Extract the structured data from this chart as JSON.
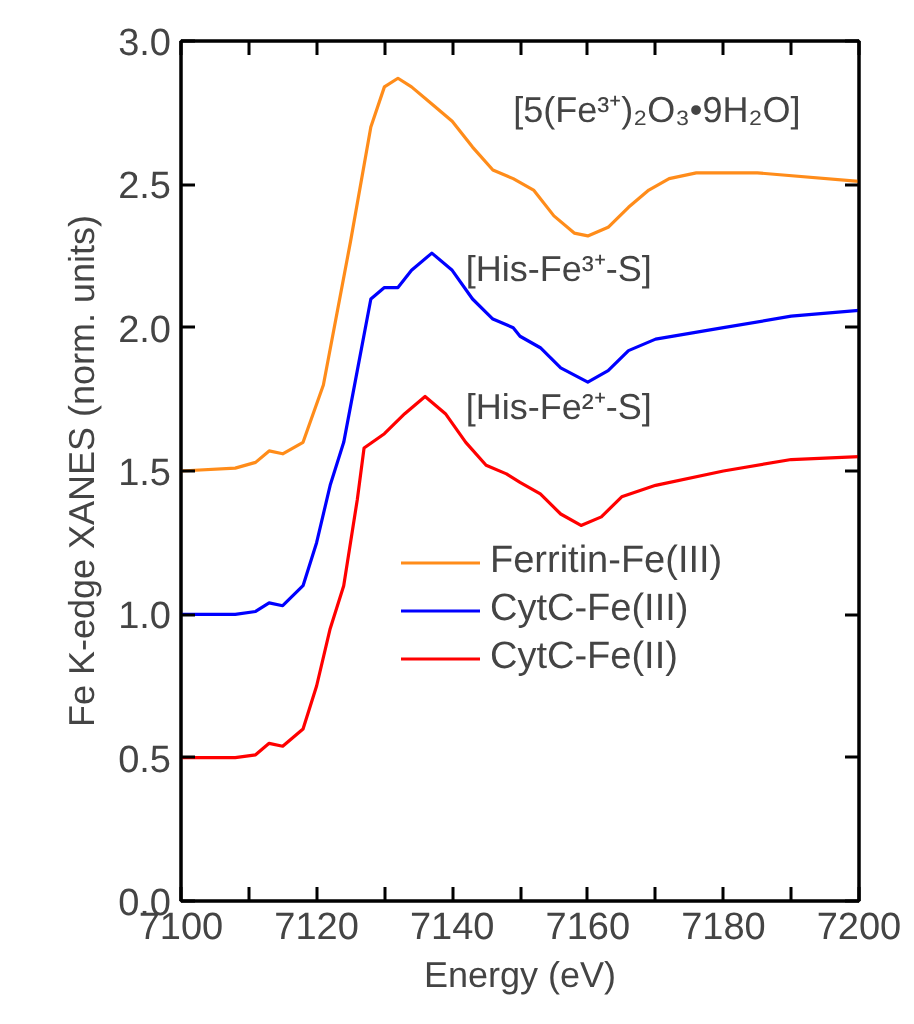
{
  "chart_data": {
    "type": "line",
    "xlabel": "Energy (eV)",
    "ylabel": "Fe K-edge XANES (norm. units)",
    "xlim": [
      7100,
      7200
    ],
    "ylim": [
      0,
      3
    ],
    "xticks": [
      7100,
      {
        "value": 7110,
        "label": null
      },
      7120,
      {
        "value": 7130,
        "label": null
      },
      7140,
      {
        "value": 7150,
        "label": null
      },
      7160,
      {
        "value": 7170,
        "label": null
      },
      7180,
      {
        "value": 7190,
        "label": null
      },
      7200
    ],
    "yticks": [
      {
        "value": 0,
        "label": "0.0"
      },
      {
        "value": 0.5,
        "label": "0.5"
      },
      {
        "value": 1,
        "label": "1.0"
      },
      {
        "value": 1.5,
        "label": "1.5"
      },
      {
        "value": 2,
        "label": "2.0"
      },
      {
        "value": 2.5,
        "label": "2.5"
      },
      {
        "value": 3,
        "label": "3.0"
      }
    ],
    "grid": false,
    "legend": "bottom right",
    "line_style": "solid",
    "marker": "none",
    "annotations": [
      "[5(Fe³⁺)₂O₃•9H₂O]",
      "[His-Fe³⁺-S]",
      "[His-Fe²⁺-S]"
    ],
    "series": [
      {
        "name": "Ferritin-Fe(III)",
        "color": "#ff8c1a",
        "x": [
          7100,
          7108,
          7111,
          7113,
          7115,
          7118,
          7121,
          7125,
          7128,
          7130,
          7132,
          7134,
          7137,
          7140,
          7143,
          7146,
          7149,
          7152,
          7155,
          7158,
          7160,
          7163,
          7166,
          7169,
          7172,
          7176,
          7185,
          7200
        ],
        "values": [
          1.5,
          1.51,
          1.53,
          1.57,
          1.56,
          1.6,
          1.8,
          2.3,
          2.7,
          2.84,
          2.87,
          2.84,
          2.78,
          2.72,
          2.63,
          2.55,
          2.52,
          2.48,
          2.39,
          2.33,
          2.32,
          2.35,
          2.42,
          2.48,
          2.52,
          2.54,
          2.54,
          2.51
        ]
      },
      {
        "name": "CytC-Fe(III)",
        "color": "#0000ff",
        "x": [
          7100,
          7108,
          7111,
          7113,
          7115,
          7118,
          7120,
          7122,
          7124,
          7126,
          7128,
          7130,
          7132,
          7134,
          7137,
          7140,
          7143,
          7146,
          7149,
          7150,
          7153,
          7156,
          7160,
          7163,
          7166,
          7170,
          7180,
          7190,
          7200
        ],
        "values": [
          1.0,
          1.0,
          1.01,
          1.04,
          1.03,
          1.1,
          1.25,
          1.45,
          1.6,
          1.85,
          2.1,
          2.14,
          2.14,
          2.2,
          2.26,
          2.2,
          2.1,
          2.03,
          2.0,
          1.97,
          1.93,
          1.86,
          1.81,
          1.85,
          1.92,
          1.96,
          2.0,
          2.04,
          2.06
        ]
      },
      {
        "name": "CytC-Fe(II)",
        "color": "#ff0000",
        "x": [
          7100,
          7108,
          7111,
          7113,
          7115,
          7118,
          7120,
          7122,
          7124,
          7126,
          7127,
          7130,
          7133,
          7136,
          7139,
          7142,
          7145,
          7148,
          7150,
          7153,
          7156,
          7159,
          7162,
          7165,
          7170,
          7180,
          7190,
          7200
        ],
        "values": [
          0.5,
          0.5,
          0.51,
          0.55,
          0.54,
          0.6,
          0.75,
          0.95,
          1.1,
          1.4,
          1.58,
          1.63,
          1.7,
          1.76,
          1.7,
          1.6,
          1.52,
          1.49,
          1.46,
          1.42,
          1.35,
          1.31,
          1.34,
          1.41,
          1.45,
          1.5,
          1.54,
          1.55
        ]
      }
    ]
  }
}
